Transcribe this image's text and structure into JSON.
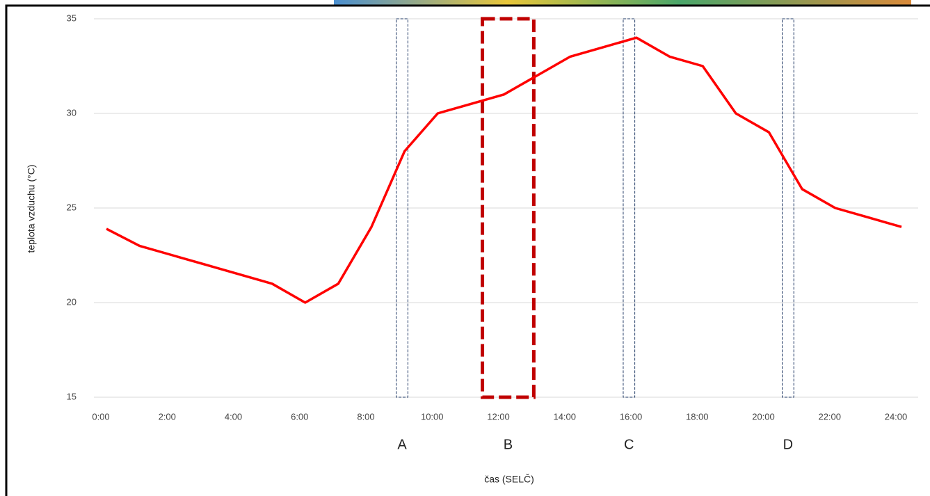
{
  "chart_data": {
    "type": "line",
    "x_label": "čas (SELČ)",
    "y_label": "teplota vzduchu (°C)",
    "x": [
      0,
      1,
      2,
      3,
      4,
      5,
      6,
      7,
      8,
      9,
      10,
      11,
      12,
      13,
      14,
      15,
      16,
      17,
      18,
      19,
      20,
      21,
      22,
      23,
      24
    ],
    "series": [
      {
        "color": "#ff0000",
        "values": [
          23.9,
          23,
          22.5,
          22,
          21.5,
          21,
          20,
          21,
          24,
          28,
          30,
          30.5,
          31,
          32,
          33,
          33.5,
          34,
          33,
          32.5,
          30,
          29,
          26,
          25,
          24.5,
          24
        ]
      }
    ],
    "xlim": [
      0,
      24
    ],
    "xticks": [
      {
        "value": 0,
        "label": "0:00"
      },
      {
        "value": 2,
        "label": "2:00"
      },
      {
        "value": 4,
        "label": "4:00"
      },
      {
        "value": 6,
        "label": "6:00"
      },
      {
        "value": 8,
        "label": "8:00"
      },
      {
        "value": 10,
        "label": "10:00"
      },
      {
        "value": 12,
        "label": "12:00"
      },
      {
        "value": 14,
        "label": "14:00"
      },
      {
        "value": 16,
        "label": "16:00"
      },
      {
        "value": 18,
        "label": "18:00"
      },
      {
        "value": 20,
        "label": "20:00"
      },
      {
        "value": 22,
        "label": "22:00"
      },
      {
        "value": 24,
        "label": "24:00"
      }
    ],
    "ylim": [
      15,
      35
    ],
    "yticks": [
      15,
      20,
      25,
      30,
      35
    ],
    "grid": true,
    "highlights": [
      {
        "label": "A",
        "x": [
          8.75,
          9.1
        ],
        "color": "#1f3864",
        "line_width": 1
      },
      {
        "label": "B",
        "x": [
          11.35,
          12.9
        ],
        "color": "#c00000",
        "line_width": 5
      },
      {
        "label": "C",
        "x": [
          15.6,
          15.95
        ],
        "color": "#1f3864",
        "line_width": 1
      },
      {
        "label": "D",
        "x": [
          20.4,
          20.75
        ],
        "color": "#1f3864",
        "line_width": 1
      }
    ]
  }
}
